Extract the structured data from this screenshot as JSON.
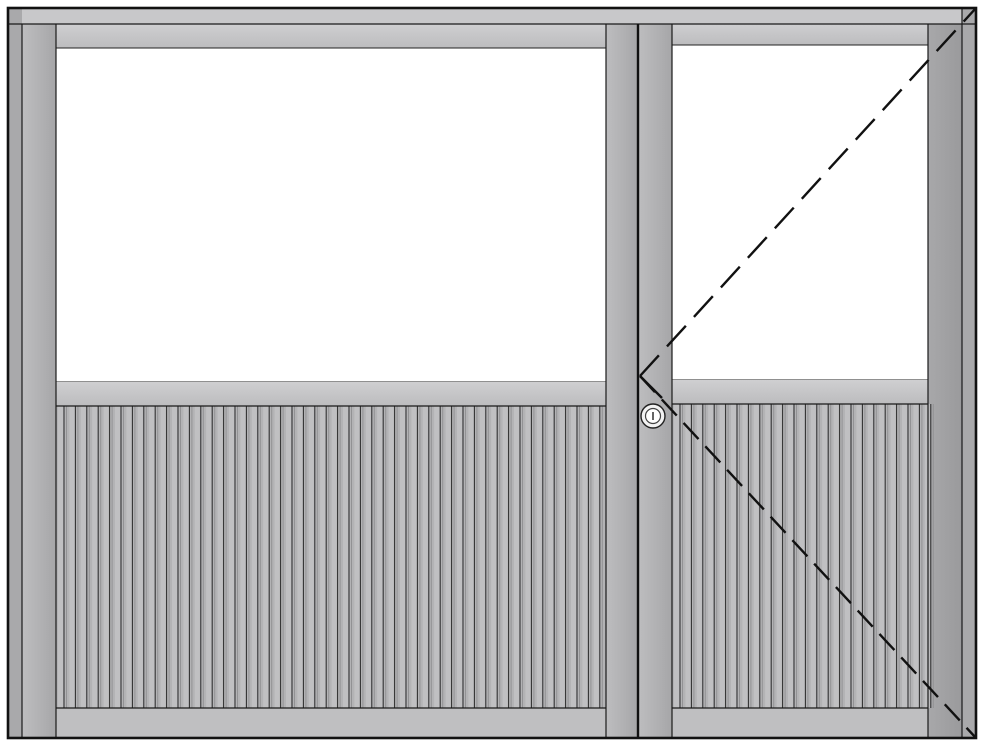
{
  "drawing": {
    "subject": "door-with-fixed-side-panel-elevation",
    "colors": {
      "background": "#ffffff",
      "frame_light": "#c4c4c6",
      "frame_mid": "#b4b4b6",
      "frame_dark": "#a3a3a5",
      "rail": "#c6c6c8",
      "glass": "#ffffff",
      "slat_light": "#c0c0c2",
      "slat_dark": "#929294",
      "outline": "#111111",
      "lock_ring": "#e8e8e8"
    },
    "icons": {
      "lock": "keyhole-lock-icon",
      "swing": "door-swing-indicator"
    }
  }
}
